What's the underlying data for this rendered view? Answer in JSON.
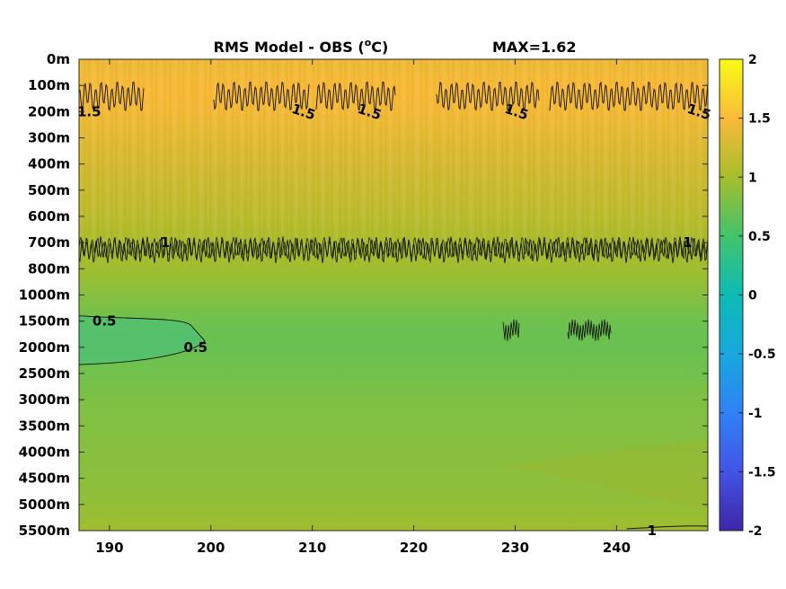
{
  "chart_data": {
    "type": "heatmap",
    "title": "RMS Model - OBS (°C)",
    "title_main": "RMS Model - OBS (",
    "title_unit_sup": "o",
    "title_unit_tail": "C)",
    "max_label": "MAX=1.62",
    "xlabel": "",
    "ylabel": "",
    "x_range": [
      187,
      249
    ],
    "x_ticks": [
      190,
      200,
      210,
      220,
      230,
      240
    ],
    "x_tick_labels": [
      "190",
      "200",
      "210",
      "220",
      "230",
      "240"
    ],
    "y_tick_labels": [
      "0m",
      "100m",
      "200m",
      "300m",
      "400m",
      "500m",
      "600m",
      "700m",
      "800m",
      "1000m",
      "1500m",
      "2000m",
      "2500m",
      "3000m",
      "3500m",
      "4000m",
      "4500m",
      "5000m",
      "5500m"
    ],
    "colorbar": {
      "range": [
        -2,
        2
      ],
      "ticks": [
        2,
        1.5,
        1,
        0.5,
        0,
        -0.5,
        -1,
        -1.5,
        -2
      ],
      "tick_labels": [
        "2",
        "1.5",
        "1",
        "0.5",
        "0",
        "-0.5",
        "-1",
        "-1.5",
        "-2"
      ],
      "colormap": "parula"
    },
    "depth_profile": [
      {
        "depth": "0m",
        "value": 1.42
      },
      {
        "depth": "100m",
        "value": 1.48
      },
      {
        "depth": "200m",
        "value": 1.45
      },
      {
        "depth": "300m",
        "value": 1.36
      },
      {
        "depth": "400m",
        "value": 1.27
      },
      {
        "depth": "500m",
        "value": 1.2
      },
      {
        "depth": "600m",
        "value": 1.13
      },
      {
        "depth": "700m",
        "value": 1.02
      },
      {
        "depth": "800m",
        "value": 0.97
      },
      {
        "depth": "1000m",
        "value": 0.85
      },
      {
        "depth": "1500m",
        "value": 0.72
      },
      {
        "depth": "2000m",
        "value": 0.7
      },
      {
        "depth": "2500m",
        "value": 0.74
      },
      {
        "depth": "3000m",
        "value": 0.8
      },
      {
        "depth": "3500m",
        "value": 0.82
      },
      {
        "depth": "4000m",
        "value": 0.85
      },
      {
        "depth": "4500m",
        "value": 0.87
      },
      {
        "depth": "5000m",
        "value": 0.9
      },
      {
        "depth": "5500m",
        "value": 0.98
      }
    ],
    "contour_labels": [
      {
        "text": "1.5",
        "x": 188,
        "depth": "200m"
      },
      {
        "text": "1.5",
        "x": 209,
        "depth": "200m"
      },
      {
        "text": "1.5",
        "x": 215.5,
        "depth": "200m"
      },
      {
        "text": "1.5",
        "x": 230,
        "depth": "200m"
      },
      {
        "text": "1.5",
        "x": 248,
        "depth": "200m"
      },
      {
        "text": "1",
        "x": 195.5,
        "depth": "700m"
      },
      {
        "text": "1",
        "x": 247,
        "depth": "700m"
      },
      {
        "text": "0.5",
        "x": 189.5,
        "depth": "1500m"
      },
      {
        "text": "0.5",
        "x": 198.5,
        "depth": "2000m"
      },
      {
        "text": "1",
        "x": 243.5,
        "depth": "5500m"
      }
    ]
  }
}
